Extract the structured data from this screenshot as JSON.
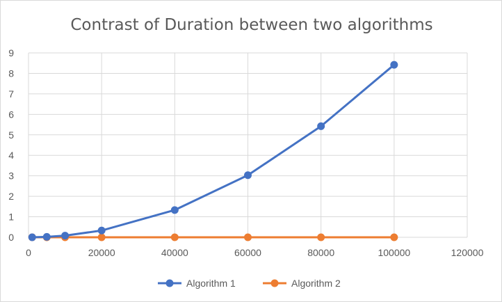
{
  "chart_data": {
    "type": "line",
    "title": "Contrast of Duration between two algorithms",
    "xlabel": "",
    "ylabel": "",
    "xlim": [
      0,
      120000
    ],
    "ylim": [
      0,
      9
    ],
    "xticks": [
      "0",
      "20000",
      "40000",
      "60000",
      "80000",
      "100000",
      "120000"
    ],
    "yticks": [
      "0",
      "1",
      "2",
      "3",
      "4",
      "5",
      "6",
      "7",
      "8",
      "9"
    ],
    "grid": "both",
    "legend_position": "bottom",
    "series": [
      {
        "name": "Algorithm 1",
        "color": "#4472c4",
        "x": [
          1000,
          5000,
          10000,
          20000,
          40000,
          60000,
          80000,
          100000
        ],
        "y": [
          0.0,
          0.02,
          0.08,
          0.33,
          1.33,
          3.03,
          5.42,
          8.42
        ]
      },
      {
        "name": "Algorithm 2",
        "color": "#ed7d31",
        "x": [
          1000,
          5000,
          10000,
          20000,
          40000,
          60000,
          80000,
          100000
        ],
        "y": [
          0,
          0,
          0,
          0,
          0,
          0,
          0,
          0
        ]
      }
    ]
  }
}
